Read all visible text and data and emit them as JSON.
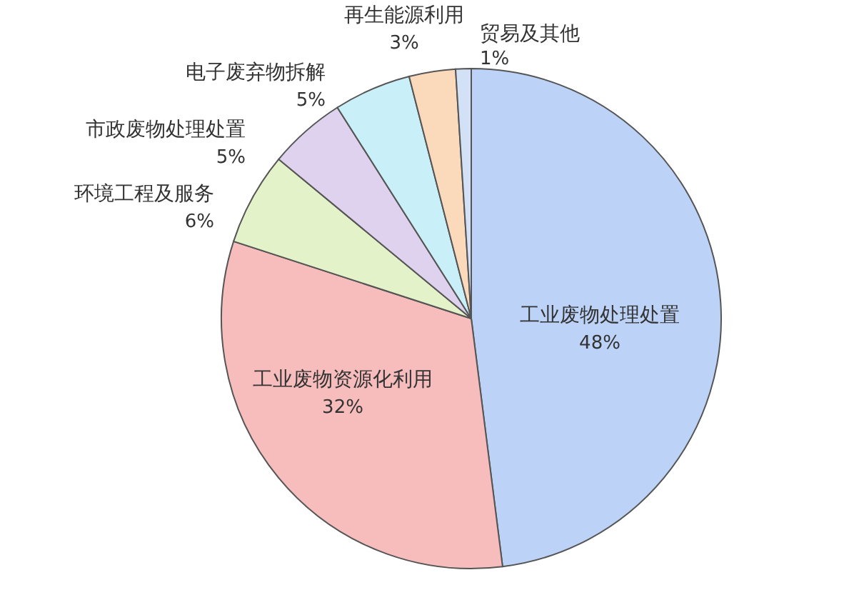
{
  "chart_data": {
    "type": "pie",
    "categories": [
      "工业废物处理处置",
      "工业废物资源化利用",
      "环境工程及服务",
      "市政废物处理处置",
      "电子废弃物拆解",
      "再生能源利用",
      "贸易及其他"
    ],
    "values": [
      48,
      32,
      6,
      5,
      5,
      3,
      1
    ],
    "colors": [
      "#bcd2f7",
      "#f7bcbc",
      "#e3f2c9",
      "#ded2ee",
      "#c9eff8",
      "#fbd9bb",
      "#d3e1f6"
    ],
    "value_labels": [
      "48%",
      "32%",
      "6%",
      "5%",
      "5%",
      "3%",
      "1%"
    ],
    "legend": false
  }
}
